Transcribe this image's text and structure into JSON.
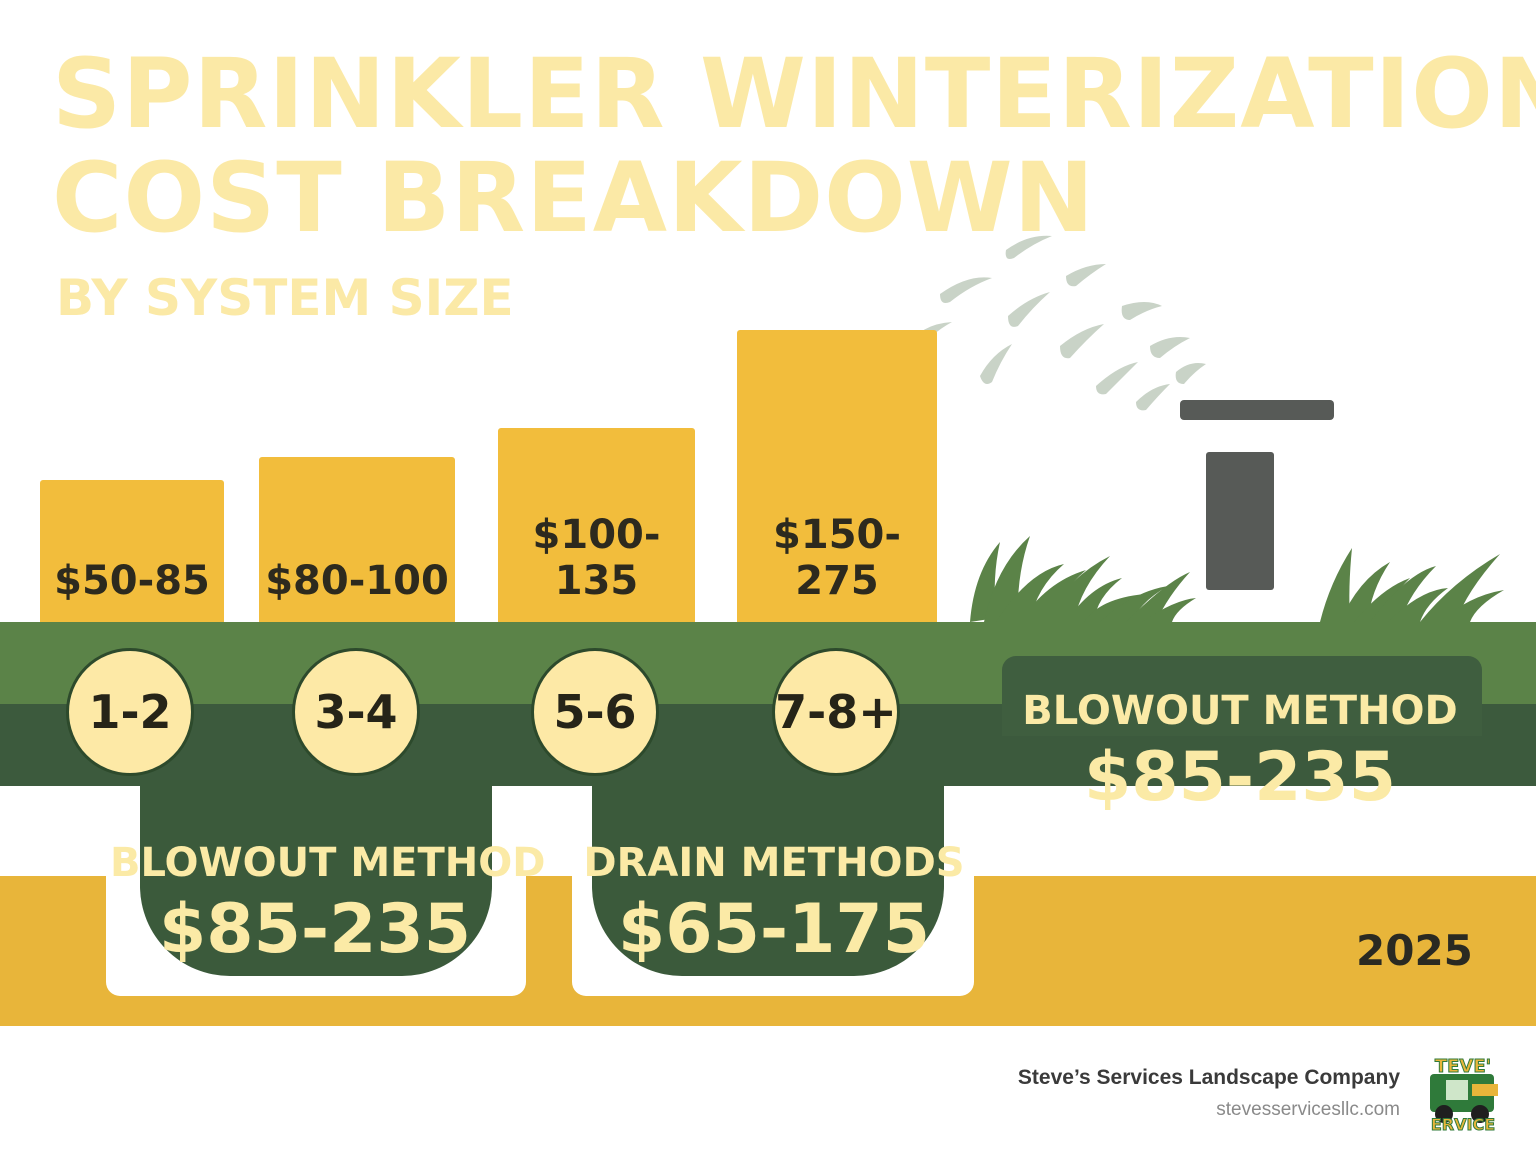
{
  "title_lines": [
    "SPRINKLER WINTERIZATION",
    "COST BREAKDOWN"
  ],
  "subtitle": "BY SYSTEM SIZE",
  "chart_data": {
    "type": "bar",
    "categories": [
      "1-2",
      "3-4",
      "5-6",
      "7-8+"
    ],
    "value_labels": [
      "$50-85",
      "$80-100",
      "$100-135",
      "$150-275"
    ],
    "ranges": [
      [
        50,
        85
      ],
      [
        80,
        100
      ],
      [
        100,
        135
      ],
      [
        150,
        275
      ]
    ],
    "bar_color": "#f2bd3c"
  },
  "methods": [
    {
      "label": "BLOWOUT METHOD",
      "value": "$85-235"
    },
    {
      "label": "DRAIN METHODS",
      "value": "$65-175"
    },
    {
      "label": "BLOWOUT METHOD",
      "value": "$85-235"
    }
  ],
  "year": "2025",
  "footer": {
    "company": "Steve’s Services Landscape Company",
    "url": "stevesservicesllc.com",
    "logo_text_top": "TEVE'",
    "logo_text_bottom": "ERVICE"
  },
  "colors": {
    "title": "#fbe9a6",
    "bar": "#f2bd3c",
    "grass_green": "#5b8348",
    "dark_green": "#3c5a3d",
    "gold_band": "#e8b53a",
    "circle_fill": "#fde9a6"
  },
  "icons": [
    "sprinkler-icon",
    "grass-icon",
    "water-spray-icon",
    "skid-steer-logo"
  ]
}
